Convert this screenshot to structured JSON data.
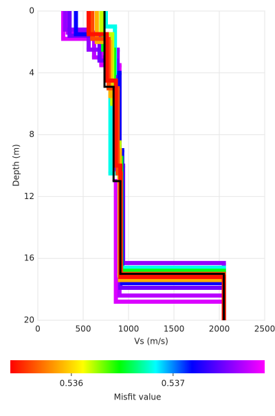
{
  "chart_data": {
    "type": "vs-profile",
    "xlabel": "Vs (m/s)",
    "ylabel": "Depth (m)",
    "xlim": [
      0,
      2500
    ],
    "xticks": [
      0,
      500,
      1000,
      1500,
      2000,
      2500
    ],
    "ylim": [
      0,
      20
    ],
    "yticks": [
      0,
      4,
      8,
      12,
      16,
      20
    ],
    "grid": true,
    "colormap": [
      "#ff0000",
      "#ff8000",
      "#ffff00",
      "#00ff00",
      "#00ffff",
      "#0000ff",
      "#8000ff",
      "#ff00ff"
    ],
    "clim": [
      0.5354,
      0.5379
    ],
    "cticks": [
      0.536,
      0.537
    ],
    "clabel": "Misfit value",
    "profiles": [
      {
        "misfit": 0.5378,
        "vs": [
          280,
          700,
          900,
          860,
          2050
        ],
        "depths": [
          1.8,
          3.5,
          11,
          18.8
        ]
      },
      {
        "misfit": 0.5377,
        "vs": [
          330,
          620,
          850,
          900,
          2050
        ],
        "depths": [
          1.4,
          3,
          9.8,
          18.4
        ]
      },
      {
        "misfit": 0.5376,
        "vs": [
          300,
          560,
          880,
          940,
          2050
        ],
        "depths": [
          1.2,
          2.5,
          10,
          16.3
        ]
      },
      {
        "misfit": 0.5375,
        "vs": [
          350,
          680,
          870,
          910,
          2050
        ],
        "depths": [
          1.6,
          3.2,
          10.5,
          17.9
        ]
      },
      {
        "misfit": 0.5372,
        "vs": [
          420,
          760,
          900,
          930,
          2050
        ],
        "depths": [
          1.5,
          4,
          9,
          17.6
        ]
      },
      {
        "misfit": 0.5368,
        "vs": [
          750,
          850,
          800,
          920,
          2050
        ],
        "depths": [
          1,
          4,
          10.5,
          16.6
        ]
      },
      {
        "misfit": 0.5365,
        "vs": [
          720,
          840,
          880,
          920,
          2050
        ],
        "depths": [
          2.5,
          5,
          9.5,
          16.8
        ]
      },
      {
        "misfit": 0.5362,
        "vs": [
          700,
          820,
          860,
          900,
          2050
        ],
        "depths": [
          1.5,
          6,
          8.5,
          17.1
        ]
      },
      {
        "misfit": 0.5359,
        "vs": [
          650,
          800,
          870,
          905,
          2050
        ],
        "depths": [
          2,
          5.5,
          9,
          17.4
        ]
      },
      {
        "misfit": 0.5356,
        "vs": [
          600,
          780,
          880,
          915,
          2050
        ],
        "depths": [
          1.8,
          5,
          10.5,
          17
        ]
      },
      {
        "misfit": 0.53545,
        "vs": [
          560,
          760,
          860,
          910,
          2050
        ],
        "depths": [
          1.5,
          4.5,
          10,
          17.2
        ]
      }
    ],
    "best": {
      "color": "#000000",
      "vs": [
        735,
        835,
        910,
        2050
      ],
      "depths": [
        4.9,
        11,
        17
      ]
    }
  }
}
